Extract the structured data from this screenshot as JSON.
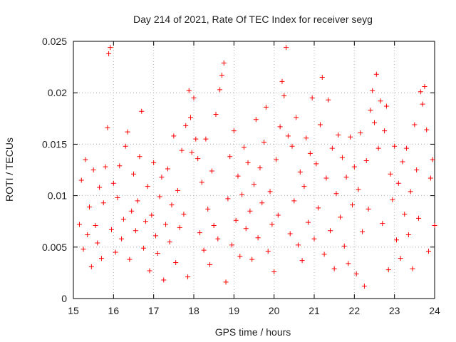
{
  "chart_data": {
    "type": "scatter",
    "title": "Day 214 of 2021, Rate Of TEC Index for receiver seyg",
    "xlabel": "GPS time / hours",
    "ylabel": "ROTI / TECUs",
    "xlim": [
      15,
      24
    ],
    "ylim": [
      0,
      0.025
    ],
    "x_ticks": [
      "15",
      "16",
      "17",
      "18",
      "19",
      "20",
      "21",
      "22",
      "23",
      "24"
    ],
    "y_ticks": [
      "0",
      "0.005",
      "0.01",
      "0.015",
      "0.02",
      "0.025"
    ],
    "grid": true,
    "marker": "+",
    "series": [
      {
        "color": "#ff0000",
        "points": [
          [
            15.15,
            0.0072
          ],
          [
            15.2,
            0.0115
          ],
          [
            15.25,
            0.0048
          ],
          [
            15.3,
            0.0135
          ],
          [
            15.35,
            0.0062
          ],
          [
            15.4,
            0.0089
          ],
          [
            15.45,
            0.0031
          ],
          [
            15.5,
            0.0125
          ],
          [
            15.55,
            0.0071
          ],
          [
            15.6,
            0.0054
          ],
          [
            15.65,
            0.0108
          ],
          [
            15.7,
            0.0039
          ],
          [
            15.75,
            0.0093
          ],
          [
            15.8,
            0.0128
          ],
          [
            15.85,
            0.0166
          ],
          [
            15.88,
            0.0238
          ],
          [
            15.92,
            0.0244
          ],
          [
            15.95,
            0.0067
          ],
          [
            16.0,
            0.0112
          ],
          [
            16.05,
            0.0045
          ],
          [
            16.1,
            0.0098
          ],
          [
            16.15,
            0.0129
          ],
          [
            16.2,
            0.0058
          ],
          [
            16.25,
            0.0077
          ],
          [
            16.3,
            0.0148
          ],
          [
            16.35,
            0.0162
          ],
          [
            16.4,
            0.0038
          ],
          [
            16.45,
            0.0085
          ],
          [
            16.5,
            0.0121
          ],
          [
            16.55,
            0.0066
          ],
          [
            16.6,
            0.0095
          ],
          [
            16.65,
            0.0138
          ],
          [
            16.7,
            0.0182
          ],
          [
            16.75,
            0.0049
          ],
          [
            16.8,
            0.0075
          ],
          [
            16.85,
            0.0109
          ],
          [
            16.9,
            0.0027
          ],
          [
            16.95,
            0.0081
          ],
          [
            17.0,
            0.0132
          ],
          [
            17.05,
            0.0061
          ],
          [
            17.1,
            0.0044
          ],
          [
            17.15,
            0.0099
          ],
          [
            17.2,
            0.0118
          ],
          [
            17.25,
            0.0018
          ],
          [
            17.3,
            0.0072
          ],
          [
            17.35,
            0.0126
          ],
          [
            17.4,
            0.0055
          ],
          [
            17.45,
            0.0091
          ],
          [
            17.5,
            0.0158
          ],
          [
            17.55,
            0.0035
          ],
          [
            17.6,
            0.0105
          ],
          [
            17.65,
            0.0069
          ],
          [
            17.7,
            0.0144
          ],
          [
            17.75,
            0.0082
          ],
          [
            17.8,
            0.0168
          ],
          [
            17.85,
            0.0021
          ],
          [
            17.88,
            0.0202
          ],
          [
            17.92,
            0.0176
          ],
          [
            17.95,
            0.0142
          ],
          [
            18.0,
            0.0195
          ],
          [
            18.05,
            0.0155
          ],
          [
            18.1,
            0.0136
          ],
          [
            18.15,
            0.0064
          ],
          [
            18.2,
            0.0113
          ],
          [
            18.25,
            0.0047
          ],
          [
            18.3,
            0.0155
          ],
          [
            18.35,
            0.0087
          ],
          [
            18.4,
            0.0033
          ],
          [
            18.45,
            0.0124
          ],
          [
            18.5,
            0.0071
          ],
          [
            18.55,
            0.0179
          ],
          [
            18.6,
            0.0058
          ],
          [
            18.65,
            0.0203
          ],
          [
            18.7,
            0.0217
          ],
          [
            18.75,
            0.0229
          ],
          [
            18.8,
            0.0016
          ],
          [
            18.85,
            0.0097
          ],
          [
            18.9,
            0.0138
          ],
          [
            18.95,
            0.0052
          ],
          [
            19.0,
            0.0163
          ],
          [
            19.05,
            0.0076
          ],
          [
            19.1,
            0.0119
          ],
          [
            19.15,
            0.0041
          ],
          [
            19.2,
            0.0101
          ],
          [
            19.25,
            0.0147
          ],
          [
            19.3,
            0.0068
          ],
          [
            19.35,
            0.0132
          ],
          [
            19.4,
            0.0085
          ],
          [
            19.45,
            0.0038
          ],
          [
            19.5,
            0.0111
          ],
          [
            19.55,
            0.0174
          ],
          [
            19.6,
            0.0059
          ],
          [
            19.65,
            0.0127
          ],
          [
            19.7,
            0.0093
          ],
          [
            19.75,
            0.0152
          ],
          [
            19.8,
            0.0186
          ],
          [
            19.85,
            0.0046
          ],
          [
            19.9,
            0.0104
          ],
          [
            19.95,
            0.0072
          ],
          [
            20.0,
            0.0026
          ],
          [
            20.05,
            0.0135
          ],
          [
            20.1,
            0.0081
          ],
          [
            20.15,
            0.0167
          ],
          [
            20.2,
            0.0211
          ],
          [
            20.25,
            0.0197
          ],
          [
            20.3,
            0.0244
          ],
          [
            20.35,
            0.0158
          ],
          [
            20.4,
            0.0063
          ],
          [
            20.45,
            0.0148
          ],
          [
            20.5,
            0.0095
          ],
          [
            20.55,
            0.0176
          ],
          [
            20.6,
            0.0052
          ],
          [
            20.65,
            0.0123
          ],
          [
            20.7,
            0.0037
          ],
          [
            20.75,
            0.0109
          ],
          [
            20.8,
            0.0156
          ],
          [
            20.85,
            0.0074
          ],
          [
            20.9,
            0.0141
          ],
          [
            20.95,
            0.0195
          ],
          [
            21.0,
            0.0058
          ],
          [
            21.05,
            0.0131
          ],
          [
            21.1,
            0.0088
          ],
          [
            21.15,
            0.0169
          ],
          [
            21.2,
            0.0215
          ],
          [
            21.25,
            0.0043
          ],
          [
            21.3,
            0.0117
          ],
          [
            21.35,
            0.0193
          ],
          [
            21.4,
            0.0066
          ],
          [
            21.45,
            0.0146
          ],
          [
            21.5,
            0.0029
          ],
          [
            21.55,
            0.0102
          ],
          [
            21.6,
            0.0159
          ],
          [
            21.65,
            0.0079
          ],
          [
            21.7,
            0.0137
          ],
          [
            21.75,
            0.0051
          ],
          [
            21.8,
            0.0118
          ],
          [
            21.85,
            0.0034
          ],
          [
            21.9,
            0.0157
          ],
          [
            21.95,
            0.0091
          ],
          [
            22.0,
            0.0128
          ],
          [
            22.05,
            0.0024
          ],
          [
            22.1,
            0.0106
          ],
          [
            22.15,
            0.0161
          ],
          [
            22.2,
            0.0065
          ],
          [
            22.25,
            0.0012
          ],
          [
            22.3,
            0.0134
          ],
          [
            22.35,
            0.0087
          ],
          [
            22.4,
            0.0183
          ],
          [
            22.45,
            0.0202
          ],
          [
            22.5,
            0.0171
          ],
          [
            22.55,
            0.0218
          ],
          [
            22.6,
            0.0146
          ],
          [
            22.65,
            0.0192
          ],
          [
            22.7,
            0.0073
          ],
          [
            22.75,
            0.0163
          ],
          [
            22.8,
            0.0187
          ],
          [
            22.85,
            0.0028
          ],
          [
            22.9,
            0.0121
          ],
          [
            22.95,
            0.0096
          ],
          [
            23.0,
            0.0148
          ],
          [
            23.05,
            0.0057
          ],
          [
            23.1,
            0.0112
          ],
          [
            23.15,
            0.0039
          ],
          [
            23.2,
            0.0133
          ],
          [
            23.25,
            0.0082
          ],
          [
            23.3,
            0.0146
          ],
          [
            23.35,
            0.0062
          ],
          [
            23.4,
            0.0104
          ],
          [
            23.45,
            0.0029
          ],
          [
            23.5,
            0.0169
          ],
          [
            23.55,
            0.0125
          ],
          [
            23.6,
            0.0078
          ],
          [
            23.65,
            0.0201
          ],
          [
            23.7,
            0.0189
          ],
          [
            23.75,
            0.0206
          ],
          [
            23.8,
            0.0164
          ],
          [
            23.85,
            0.0046
          ],
          [
            23.9,
            0.0117
          ],
          [
            23.95,
            0.0135
          ],
          [
            24.0,
            0.0071
          ]
        ]
      }
    ]
  }
}
